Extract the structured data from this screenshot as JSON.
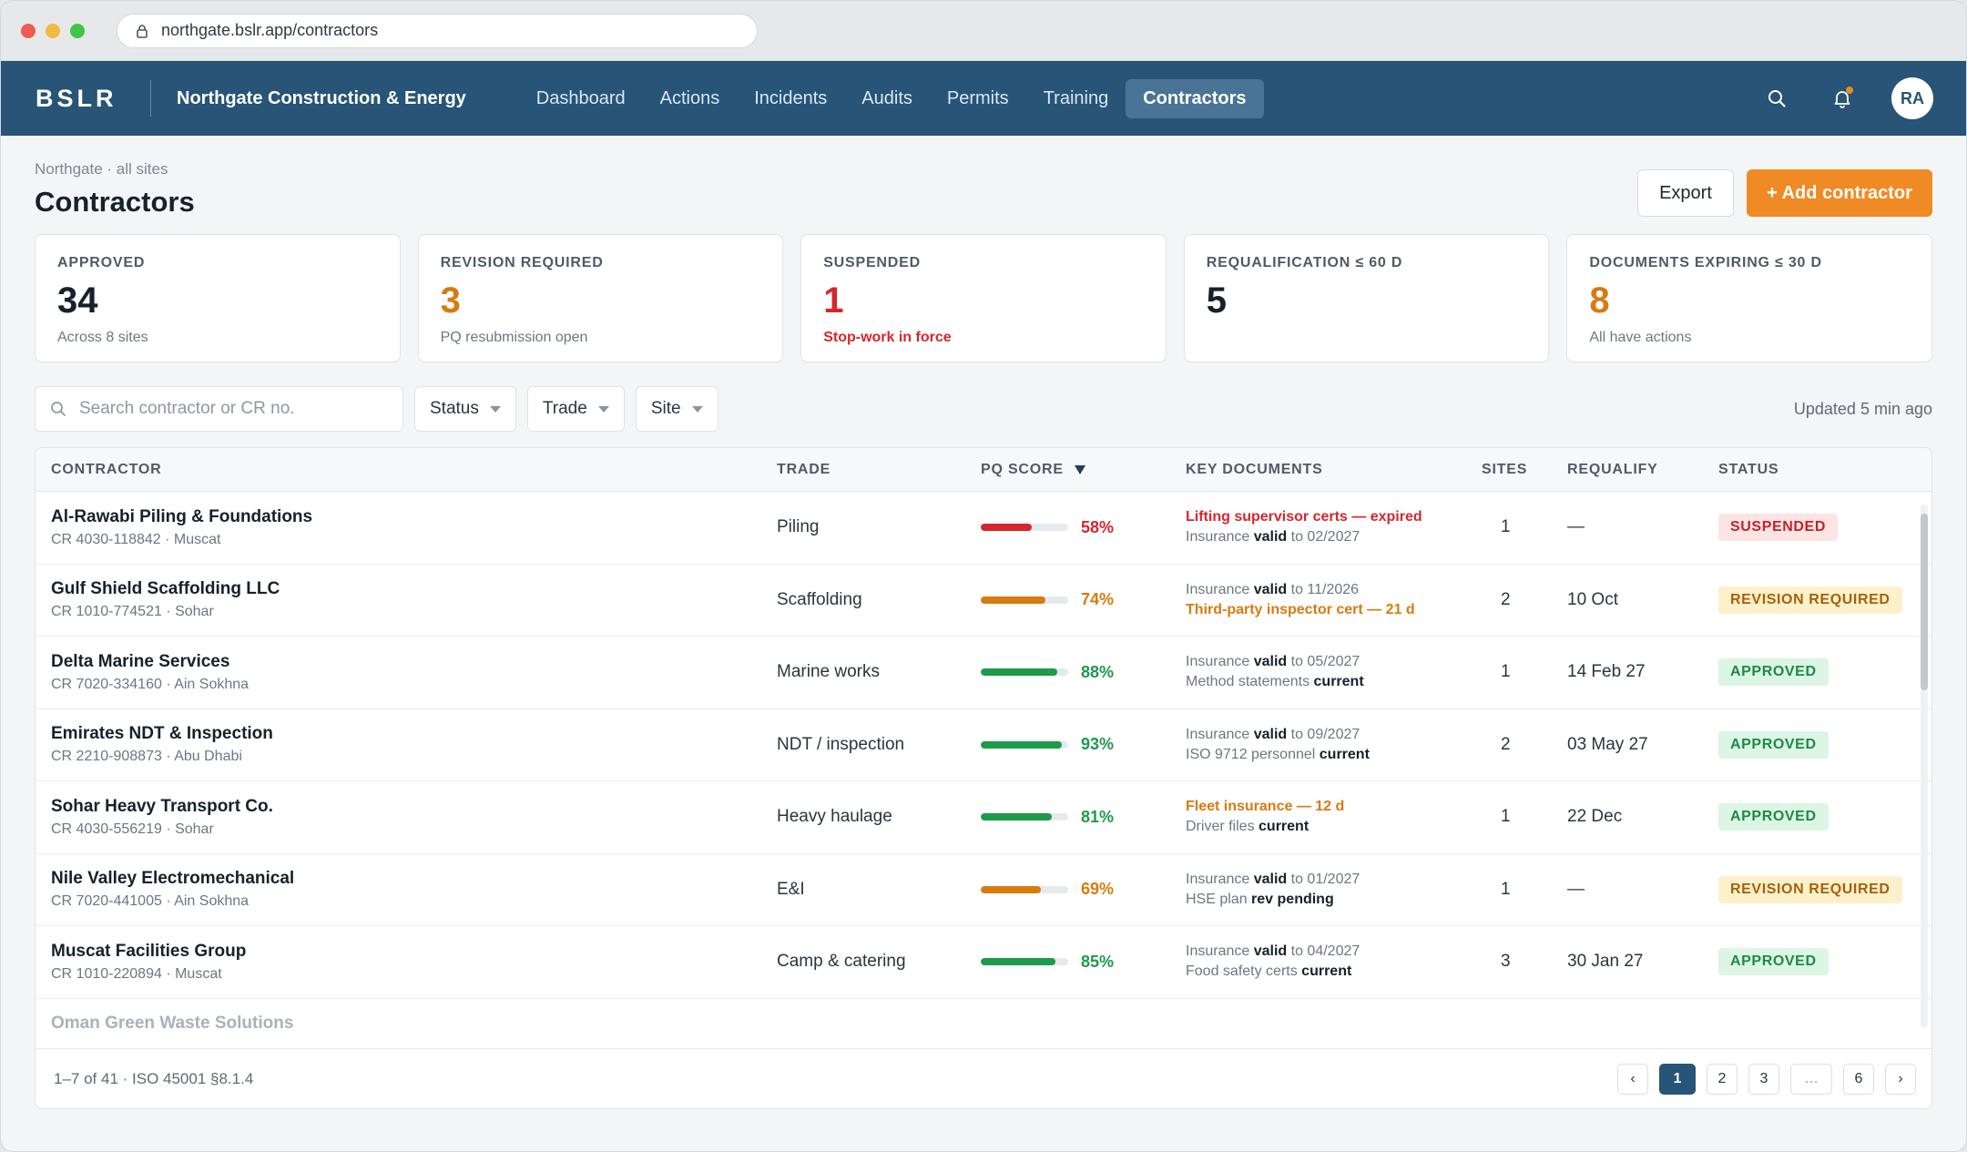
{
  "browser": {
    "url": "northgate.bslr.app/contractors"
  },
  "nav": {
    "brand": "BSLR",
    "org": "Northgate Construction & Energy",
    "items": [
      "Dashboard",
      "Actions",
      "Incidents",
      "Audits",
      "Permits",
      "Training",
      "Contractors"
    ],
    "active": "Contractors",
    "avatar": "RA"
  },
  "header": {
    "breadcrumb": "Northgate · all sites",
    "title": "Contractors",
    "export_label": "Export",
    "add_label": "+ Add contractor"
  },
  "kpis": [
    {
      "label": "APPROVED",
      "value": "34",
      "sub": "Across 8 sites",
      "color": "#16212c"
    },
    {
      "label": "REVISION REQUIRED",
      "value": "3",
      "sub": "PQ resubmission open",
      "color": "#d97a10"
    },
    {
      "label": "SUSPENDED",
      "value": "1",
      "sub": "Stop-work in force",
      "color": "#d6262d"
    },
    {
      "label": "REQUALIFICATION ≤ 60 D",
      "value": "5",
      "sub": "",
      "color": "#16212c"
    },
    {
      "label": "DOCUMENTS EXPIRING ≤ 30 D",
      "value": "8",
      "sub": "All have actions",
      "color": "#d97a10"
    }
  ],
  "filters": {
    "search_placeholder": "Search contractor or CR no.",
    "status": "Status",
    "trade": "Trade",
    "site": "Site",
    "updated": "Updated 5 min ago"
  },
  "table": {
    "headers": {
      "contractor": "CONTRACTOR",
      "trade": "TRADE",
      "pq": "PQ SCORE",
      "docs": "KEY DOCUMENTS",
      "sites": "SITES",
      "requalify": "REQUALIFY",
      "status": "STATUS"
    },
    "rows": [
      {
        "name": "Al-Rawabi Piling & Foundations",
        "cr": "CR 4030-118842 · Muscat",
        "trade": "Piling",
        "pq": 58,
        "pq_label": "58%",
        "pq_color": "#d6262d",
        "doc1": {
          "text": "Lifting supervisor certs — expired",
          "style": "red"
        },
        "doc2": {
          "pre": "Insurance ",
          "bold": "valid",
          "post": " to 02/2027"
        },
        "sites": "1",
        "requalify": "—",
        "status": "SUSPENDED",
        "status_class": "suspended"
      },
      {
        "name": "Gulf Shield Scaffolding LLC",
        "cr": "CR 1010-774521 · Sohar",
        "trade": "Scaffolding",
        "pq": 74,
        "pq_label": "74%",
        "pq_color": "#d97a10",
        "doc1": {
          "pre": "Insurance ",
          "bold": "valid",
          "post": " to 11/2026"
        },
        "doc2": {
          "text": "Third-party inspector cert — 21 d",
          "style": "orange"
        },
        "sites": "2",
        "requalify": "10 Oct",
        "status": "REVISION REQUIRED",
        "status_class": "revision"
      },
      {
        "name": "Delta Marine Services",
        "cr": "CR 7020-334160 · Ain Sokhna",
        "trade": "Marine works",
        "pq": 88,
        "pq_label": "88%",
        "pq_color": "#1d9a4b",
        "doc1": {
          "pre": "Insurance ",
          "bold": "valid",
          "post": " to 05/2027"
        },
        "doc2": {
          "pre": "Method statements ",
          "bold": "current",
          "post": ""
        },
        "sites": "1",
        "requalify": "14 Feb 27",
        "status": "APPROVED",
        "status_class": "approved"
      },
      {
        "name": "Emirates NDT & Inspection",
        "cr": "CR 2210-908873 · Abu Dhabi",
        "trade": "NDT / inspection",
        "pq": 93,
        "pq_label": "93%",
        "pq_color": "#1d9a4b",
        "doc1": {
          "pre": "Insurance ",
          "bold": "valid",
          "post": " to 09/2027"
        },
        "doc2": {
          "pre": "ISO 9712 personnel ",
          "bold": "current",
          "post": ""
        },
        "sites": "2",
        "requalify": "03 May 27",
        "status": "APPROVED",
        "status_class": "approved"
      },
      {
        "name": "Sohar Heavy Transport Co.",
        "cr": "CR 4030-556219 · Sohar",
        "trade": "Heavy haulage",
        "pq": 81,
        "pq_label": "81%",
        "pq_color": "#1d9a4b",
        "doc1": {
          "text": "Fleet insurance — 12 d",
          "style": "orange"
        },
        "doc2": {
          "pre": "Driver files ",
          "bold": "current",
          "post": ""
        },
        "sites": "1",
        "requalify": "22 Dec",
        "status": "APPROVED",
        "status_class": "approved"
      },
      {
        "name": "Nile Valley Electromechanical",
        "cr": "CR 7020-441005 · Ain Sokhna",
        "trade": "E&I",
        "pq": 69,
        "pq_label": "69%",
        "pq_color": "#d97a10",
        "doc1": {
          "pre": "Insurance ",
          "bold": "valid",
          "post": " to 01/2027"
        },
        "doc2": {
          "pre": "HSE plan ",
          "bold": "rev pending",
          "post": ""
        },
        "sites": "1",
        "requalify": "—",
        "status": "REVISION REQUIRED",
        "status_class": "revision"
      },
      {
        "name": "Muscat Facilities Group",
        "cr": "CR 1010-220894 · Muscat",
        "trade": "Camp & catering",
        "pq": 85,
        "pq_label": "85%",
        "pq_color": "#1d9a4b",
        "doc1": {
          "pre": "Insurance ",
          "bold": "valid",
          "post": " to 04/2027"
        },
        "doc2": {
          "pre": "Food safety certs ",
          "bold": "current",
          "post": ""
        },
        "sites": "3",
        "requalify": "30 Jan 27",
        "status": "APPROVED",
        "status_class": "approved"
      }
    ],
    "partial_row": "Oman Green Waste Solutions"
  },
  "footer": {
    "range": "1–7 of 41 · ISO 45001 §8.1.4",
    "pages": [
      "‹",
      "1",
      "2",
      "3",
      "…",
      "6",
      "›"
    ],
    "active_page": "1"
  }
}
